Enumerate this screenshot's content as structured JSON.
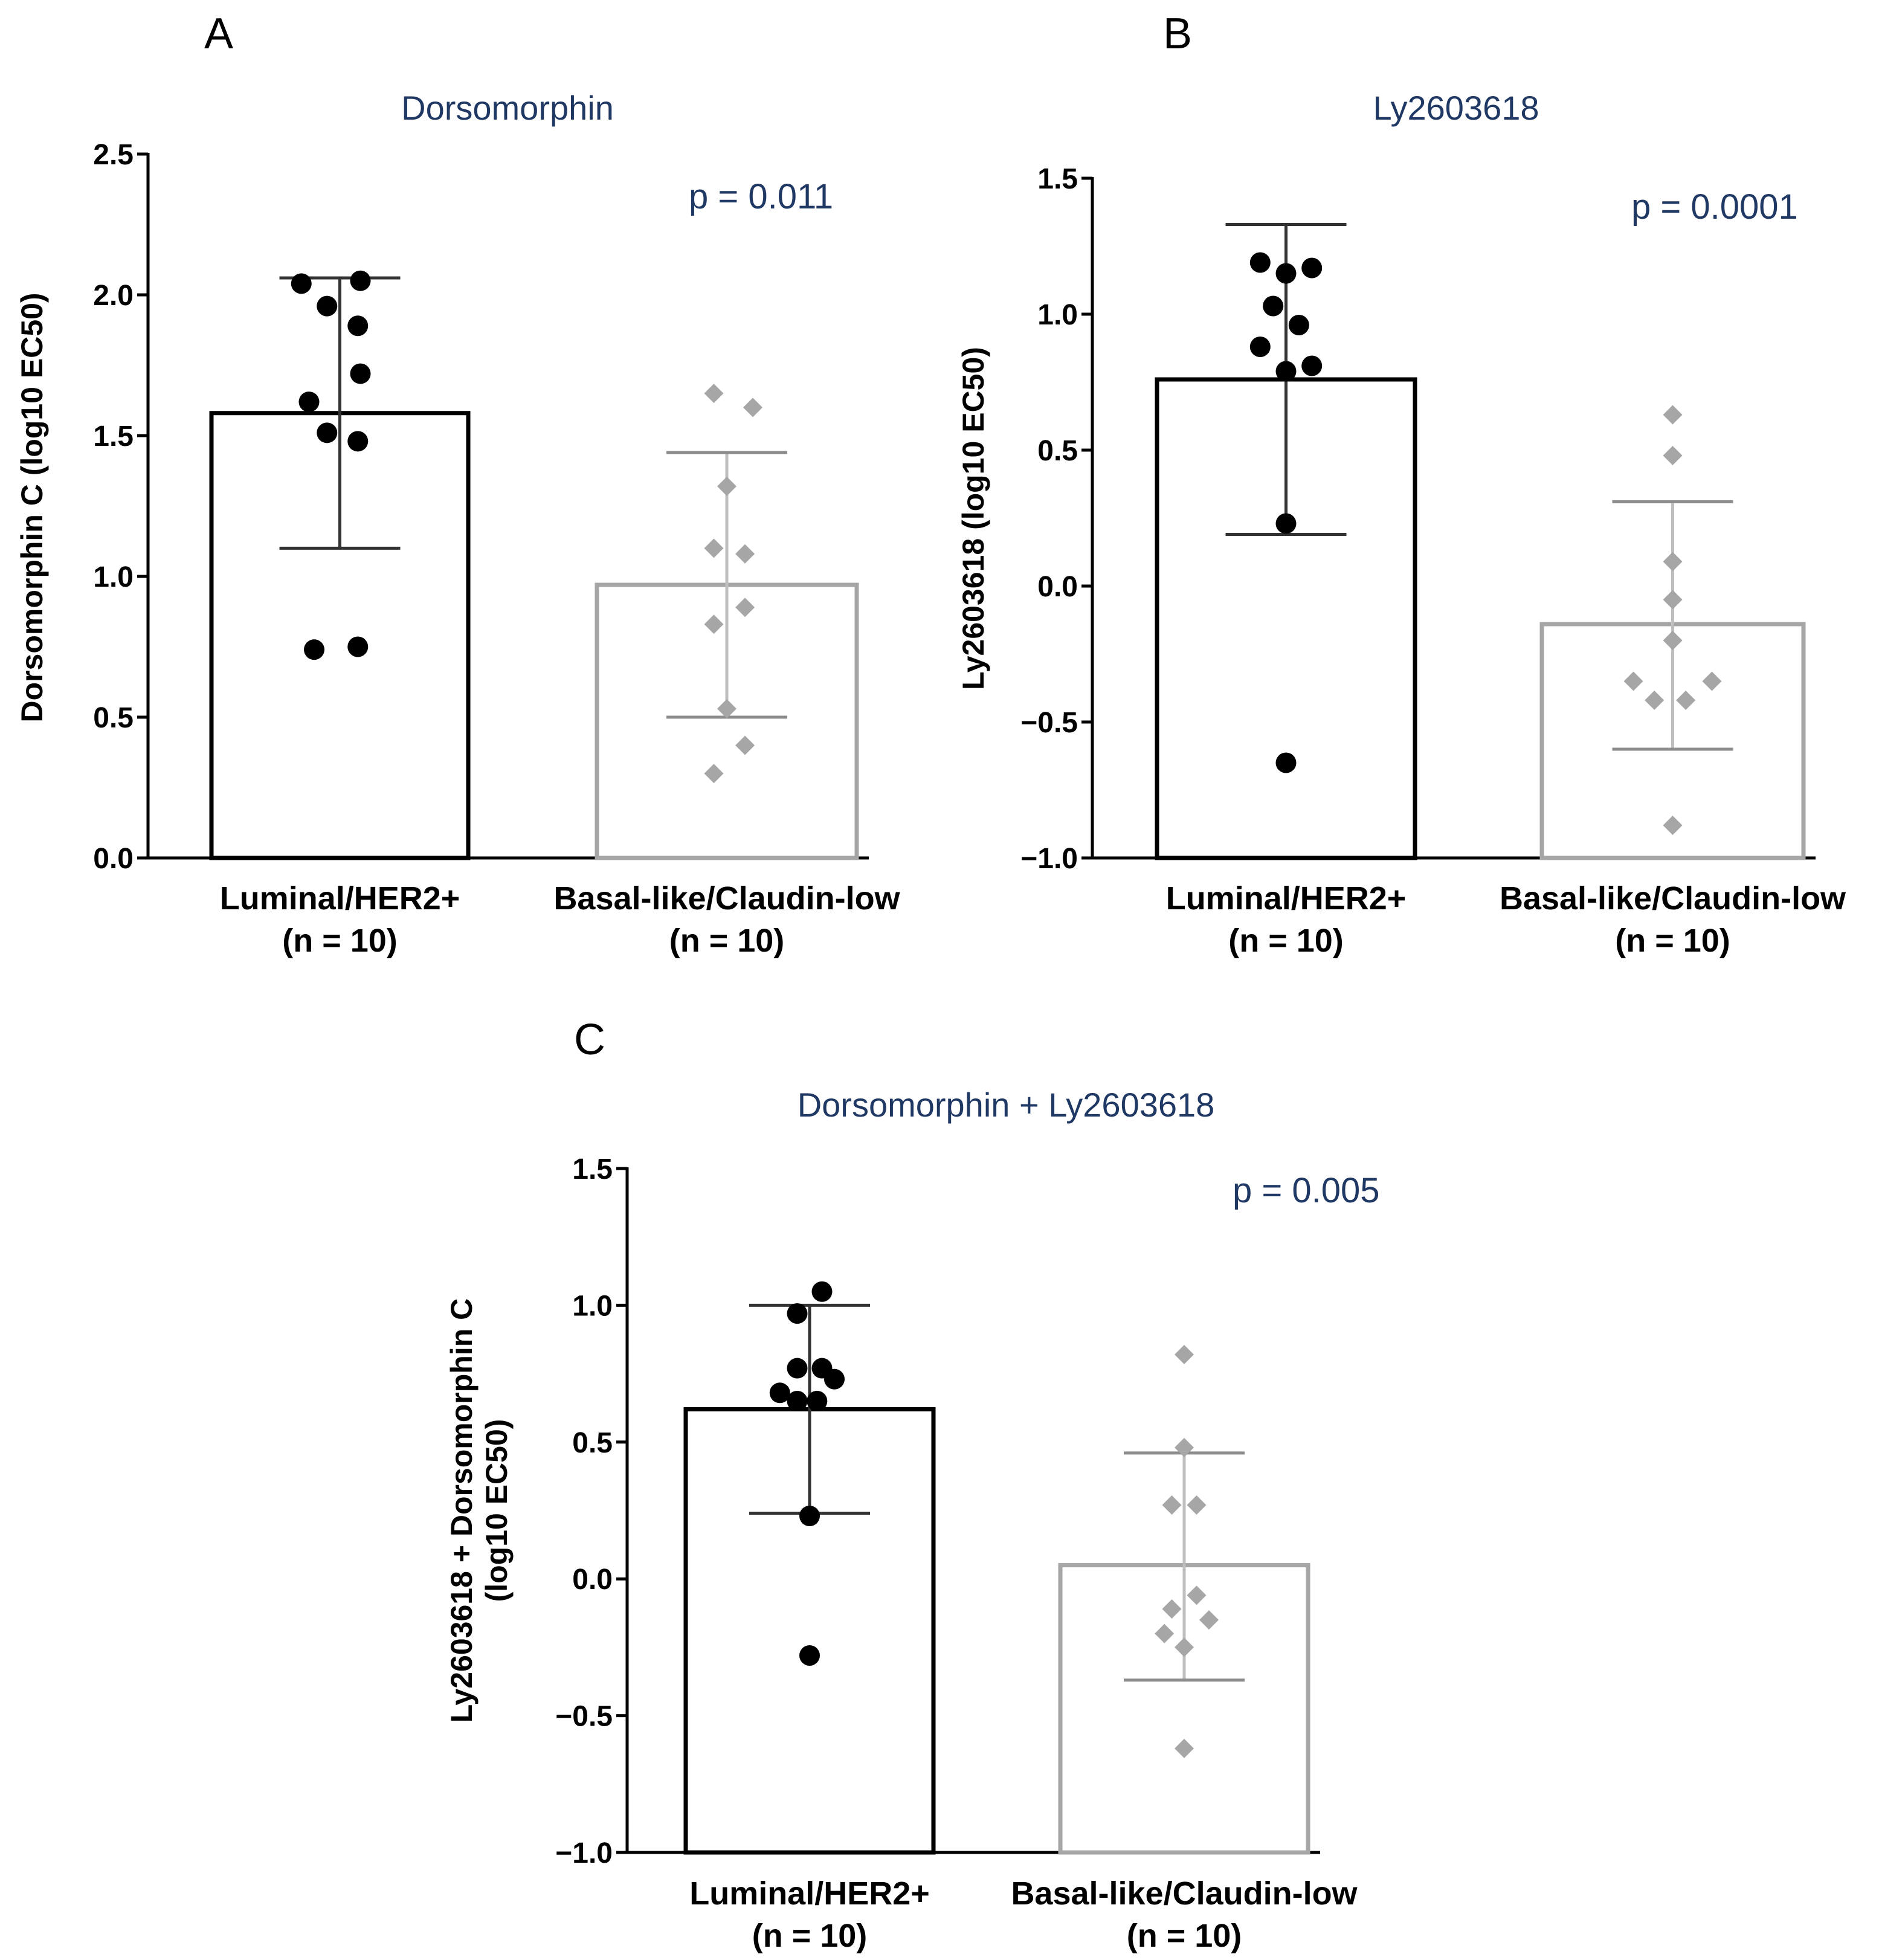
{
  "figure_title": "",
  "chart_data": [
    {
      "panel": "A",
      "type": "bar",
      "title": "Dorsomorphin",
      "ylabel": [
        "Dorsomorphin C (log10  EC50)"
      ],
      "ylim": [
        0,
        2.5
      ],
      "yticks": [
        "0.0",
        "0.5",
        "1.0",
        "1.5",
        "2.0",
        "2.5"
      ],
      "p_value": "p = 0.011",
      "categories": [
        {
          "label": "Luminal/HER2+",
          "n": "(n = 10)"
        },
        {
          "label": "Basal-like/Claudin-low",
          "n": "(n = 10)"
        }
      ],
      "series": [
        {
          "name": "Luminal/HER2+",
          "color": "#000000",
          "marker": "circle",
          "mean": 1.58,
          "sd_low": 1.1,
          "sd_high": 2.06,
          "points": [
            {
              "dx": -0.15,
              "y": 2.04
            },
            {
              "dx": 0.08,
              "y": 2.05
            },
            {
              "dx": -0.05,
              "y": 1.96
            },
            {
              "dx": 0.07,
              "y": 1.89
            },
            {
              "dx": 0.08,
              "y": 1.72
            },
            {
              "dx": -0.12,
              "y": 1.62
            },
            {
              "dx": -0.05,
              "y": 1.51
            },
            {
              "dx": 0.07,
              "y": 1.48
            },
            {
              "dx": -0.1,
              "y": 0.74
            },
            {
              "dx": 0.07,
              "y": 0.75
            }
          ]
        },
        {
          "name": "Basal-like/Claudin-low",
          "color": "#a6a6a6",
          "marker": "diamond",
          "mean": 0.97,
          "sd_low": 0.5,
          "sd_high": 1.44,
          "points": [
            {
              "dx": -0.05,
              "y": 1.65
            },
            {
              "dx": 0.1,
              "y": 1.6
            },
            {
              "dx": 0.0,
              "y": 1.32
            },
            {
              "dx": -0.05,
              "y": 1.1
            },
            {
              "dx": 0.07,
              "y": 1.08
            },
            {
              "dx": 0.07,
              "y": 0.89
            },
            {
              "dx": -0.05,
              "y": 0.83
            },
            {
              "dx": 0.0,
              "y": 0.53
            },
            {
              "dx": 0.07,
              "y": 0.4
            },
            {
              "dx": -0.05,
              "y": 0.3
            }
          ]
        }
      ]
    },
    {
      "panel": "B",
      "type": "bar",
      "title": "Ly2603618",
      "ylabel": [
        "Ly2603618  (log10  EC50)"
      ],
      "ylim": [
        -1.0,
        1.5
      ],
      "yticks": [
        "−1.0",
        "−0.5",
        "0.0",
        "0.5",
        "1.0",
        "1.5"
      ],
      "p_value": "p = 0.0001",
      "categories": [
        {
          "label": "Luminal/HER2+",
          "n": "(n = 10)"
        },
        {
          "label": "Basal-like/Claudin-low",
          "n": "(n = 10)"
        }
      ],
      "series": [
        {
          "name": "Luminal/HER2+",
          "color": "#000000",
          "marker": "circle",
          "mean": 0.76,
          "sd_low": 0.19,
          "sd_high": 1.33,
          "points": [
            {
              "dx": -0.1,
              "y": 1.19
            },
            {
              "dx": 0.1,
              "y": 1.17
            },
            {
              "dx": 0.0,
              "y": 1.15
            },
            {
              "dx": -0.05,
              "y": 1.03
            },
            {
              "dx": 0.05,
              "y": 0.96
            },
            {
              "dx": -0.1,
              "y": 0.88
            },
            {
              "dx": 0.1,
              "y": 0.81
            },
            {
              "dx": 0.0,
              "y": 0.79
            },
            {
              "dx": 0.0,
              "y": 0.23
            },
            {
              "dx": 0.0,
              "y": -0.65
            }
          ]
        },
        {
          "name": "Basal-like/Claudin-low",
          "color": "#a6a6a6",
          "marker": "diamond",
          "mean": -0.14,
          "sd_low": -0.6,
          "sd_high": 0.31,
          "points": [
            {
              "dx": 0.0,
              "y": 0.63
            },
            {
              "dx": 0.0,
              "y": 0.48
            },
            {
              "dx": 0.0,
              "y": 0.09
            },
            {
              "dx": 0.0,
              "y": -0.05
            },
            {
              "dx": 0.0,
              "y": -0.2
            },
            {
              "dx": -0.15,
              "y": -0.35
            },
            {
              "dx": 0.15,
              "y": -0.35
            },
            {
              "dx": -0.07,
              "y": -0.42
            },
            {
              "dx": 0.05,
              "y": -0.42
            },
            {
              "dx": 0.0,
              "y": -0.88
            }
          ]
        }
      ]
    },
    {
      "panel": "C",
      "type": "bar",
      "title": "Dorsomorphin  + Ly2603618",
      "ylabel": [
        "Ly2603618 + Dorsomorphin C",
        "(log10  EC50)"
      ],
      "ylim": [
        -1.0,
        1.5
      ],
      "yticks": [
        "−1.0",
        "−0.5",
        "0.0",
        "0.5",
        "1.0",
        "1.5"
      ],
      "p_value": "p = 0.005",
      "categories": [
        {
          "label": "Luminal/HER2+",
          "n": "(n = 10)"
        },
        {
          "label": "Basal-like/Claudin-low",
          "n": "(n = 10)"
        }
      ],
      "series": [
        {
          "name": "Luminal/HER2+",
          "color": "#000000",
          "marker": "circle",
          "mean": 0.62,
          "sd_low": 0.24,
          "sd_high": 1.0,
          "points": [
            {
              "dx": 0.05,
              "y": 1.05
            },
            {
              "dx": -0.05,
              "y": 0.97
            },
            {
              "dx": -0.05,
              "y": 0.77
            },
            {
              "dx": 0.05,
              "y": 0.77
            },
            {
              "dx": 0.1,
              "y": 0.73
            },
            {
              "dx": -0.12,
              "y": 0.68
            },
            {
              "dx": -0.05,
              "y": 0.65
            },
            {
              "dx": 0.03,
              "y": 0.65
            },
            {
              "dx": 0.0,
              "y": 0.23
            },
            {
              "dx": 0.0,
              "y": -0.28
            }
          ]
        },
        {
          "name": "Basal-like/Claudin-low",
          "color": "#a6a6a6",
          "marker": "diamond",
          "mean": 0.05,
          "sd_low": -0.37,
          "sd_high": 0.46,
          "points": [
            {
              "dx": 0.0,
              "y": 0.82
            },
            {
              "dx": 0.0,
              "y": 0.48
            },
            {
              "dx": -0.05,
              "y": 0.27
            },
            {
              "dx": 0.05,
              "y": 0.27
            },
            {
              "dx": 0.05,
              "y": -0.06
            },
            {
              "dx": -0.05,
              "y": -0.11
            },
            {
              "dx": 0.1,
              "y": -0.15
            },
            {
              "dx": -0.08,
              "y": -0.2
            },
            {
              "dx": 0.0,
              "y": -0.25
            },
            {
              "dx": 0.0,
              "y": -0.62
            }
          ]
        }
      ]
    }
  ]
}
